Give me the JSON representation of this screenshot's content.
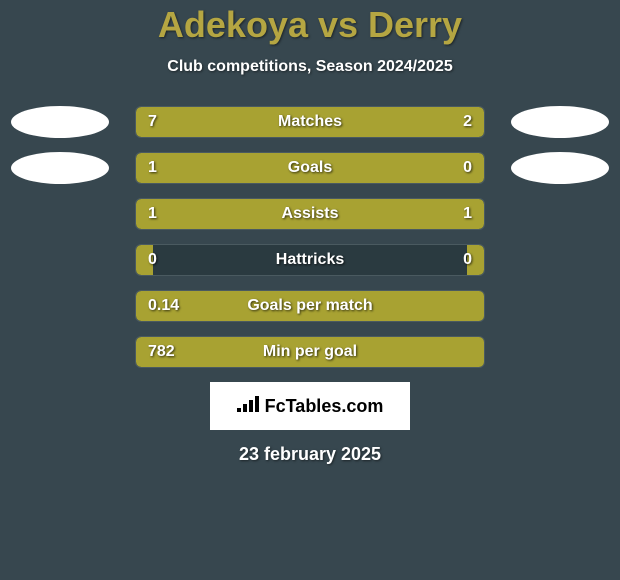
{
  "title": "Adekoya vs Derry",
  "subtitle": "Club competitions, Season 2024/2025",
  "brand": "FcTables.com",
  "date": "23 february 2025",
  "colors": {
    "background": "#37474f",
    "title": "#b5a642",
    "bar_fill": "#a8a232",
    "bar_bg": "#2a3a40",
    "bar_border": "#4a5a60",
    "text": "#ffffff",
    "avatar": "#ffffff"
  },
  "rows": [
    {
      "label": "Matches",
      "left_value": "7",
      "right_value": "2",
      "left_pct": 74,
      "right_pct": 26,
      "show_avatar": true
    },
    {
      "label": "Goals",
      "left_value": "1",
      "right_value": "0",
      "left_pct": 76,
      "right_pct": 24,
      "show_avatar": true
    },
    {
      "label": "Assists",
      "left_value": "1",
      "right_value": "1",
      "left_pct": 50,
      "right_pct": 50,
      "show_avatar": false
    },
    {
      "label": "Hattricks",
      "left_value": "0",
      "right_value": "0",
      "left_pct": 5,
      "right_pct": 5,
      "show_avatar": false
    },
    {
      "label": "Goals per match",
      "left_value": "0.14",
      "right_value": "",
      "left_pct": 100,
      "right_pct": 0,
      "show_avatar": false
    },
    {
      "label": "Min per goal",
      "left_value": "782",
      "right_value": "",
      "left_pct": 100,
      "right_pct": 0,
      "show_avatar": false
    }
  ]
}
